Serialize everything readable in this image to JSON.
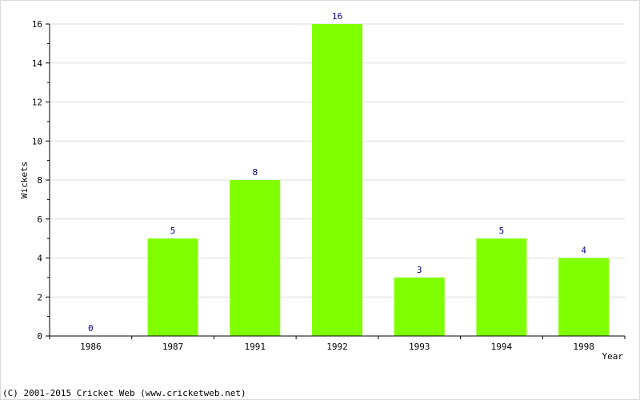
{
  "chart_data": {
    "type": "bar",
    "categories": [
      "1986",
      "1987",
      "1991",
      "1992",
      "1993",
      "1994",
      "1998"
    ],
    "values": [
      0,
      5,
      8,
      16,
      3,
      5,
      4
    ],
    "data_labels": [
      "0",
      "5",
      "8",
      "16",
      "3",
      "5",
      "4"
    ],
    "xlabel": "Year",
    "ylabel": "Wickets",
    "ylim": [
      0,
      16
    ],
    "yticks": [
      "0",
      "2",
      "4",
      "6",
      "8",
      "10",
      "12",
      "14",
      "16"
    ],
    "grid": true,
    "bar_color": "#80ff00",
    "label_color": "#000080"
  },
  "footer": {
    "copyright": "(C) 2001-2015 Cricket Web (www.cricketweb.net)"
  }
}
